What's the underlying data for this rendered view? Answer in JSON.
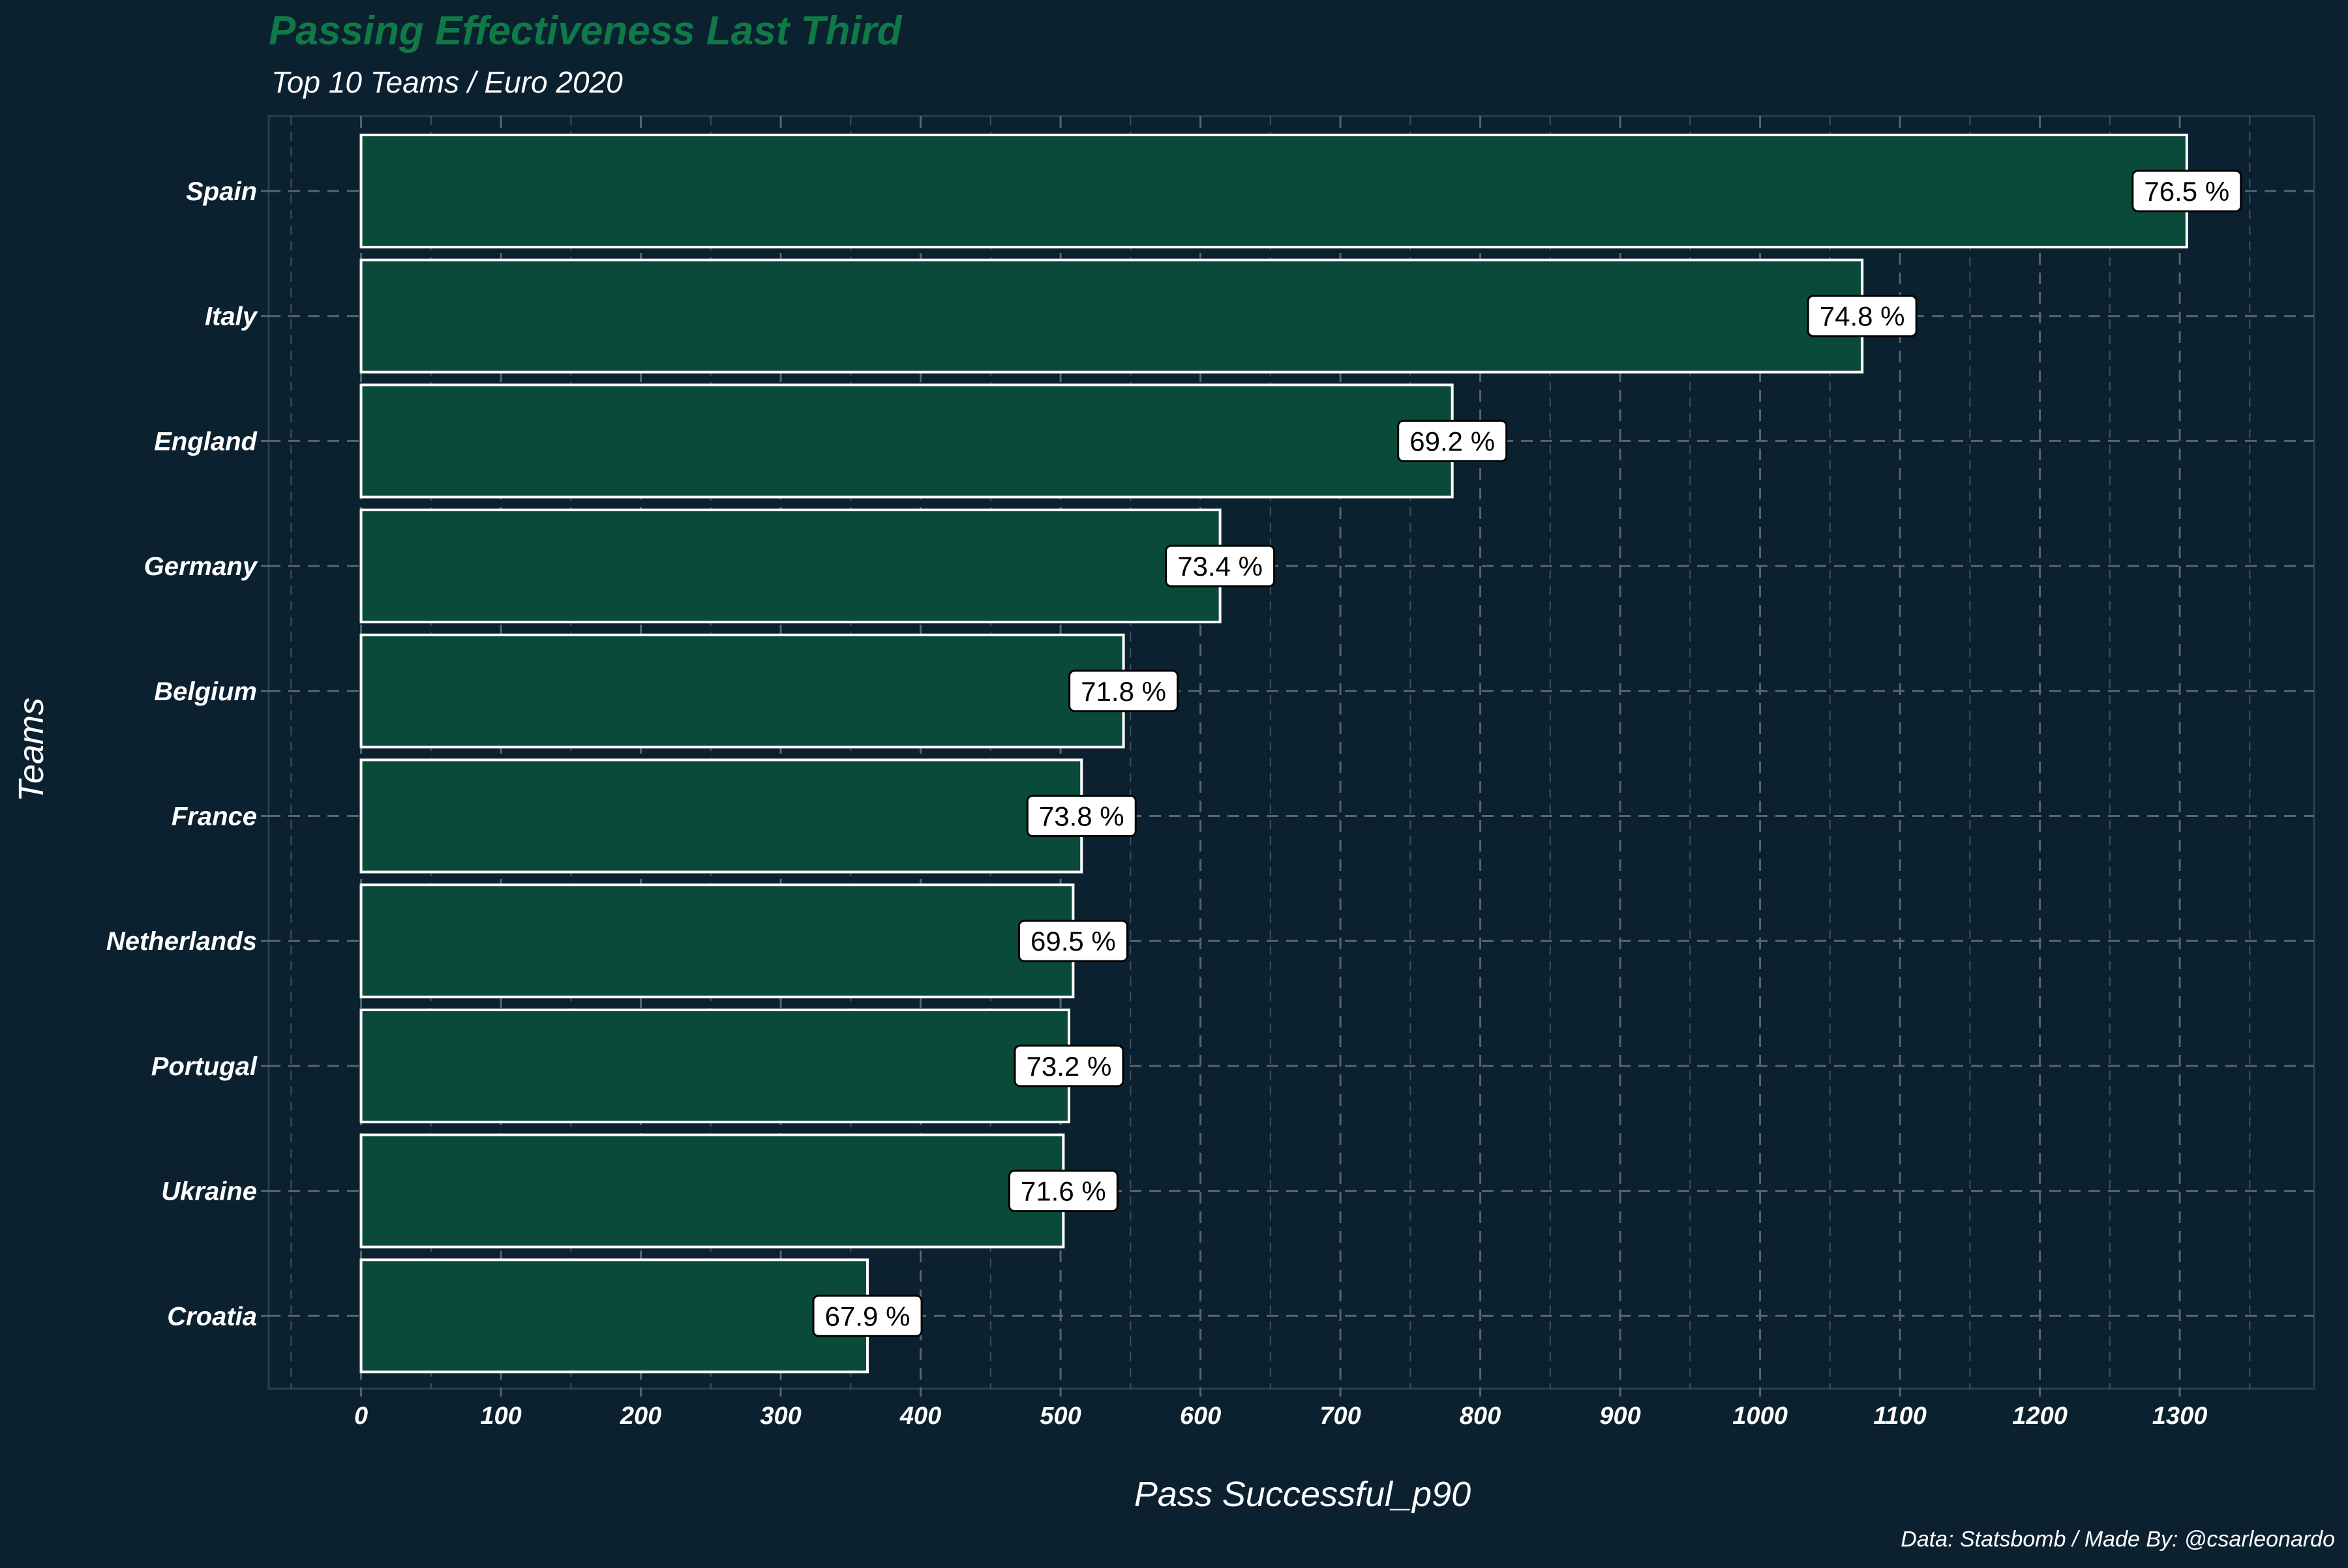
{
  "chart_data": {
    "type": "bar",
    "orientation": "horizontal",
    "title": "Passing Effectiveness Last Third",
    "subtitle": "Top 10 Teams / Euro 2020",
    "xlabel": "Pass Successful_p90",
    "ylabel": "Teams",
    "caption": "Data: Statsbomb / Made By: @csarleonardo",
    "categories": [
      "Spain",
      "Italy",
      "England",
      "Germany",
      "Belgium",
      "France",
      "Netherlands",
      "Portugal",
      "Ukraine",
      "Croatia"
    ],
    "values": [
      1305,
      1073,
      780,
      614,
      545,
      515,
      509,
      506,
      502,
      362
    ],
    "labels": [
      "76.5 %",
      "74.8 %",
      "69.2 %",
      "73.4 %",
      "71.8 %",
      "73.8 %",
      "69.5 %",
      "73.2 %",
      "71.6 %",
      "67.9 %"
    ],
    "xlim": [
      -66,
      1396
    ],
    "xticks": [
      0,
      100,
      200,
      300,
      400,
      500,
      600,
      700,
      800,
      900,
      1000,
      1100,
      1200,
      1300
    ],
    "grid": true,
    "colors": {
      "background": "#0b2130",
      "bar_fill": "#0a4a3a",
      "bar_stroke": "#ffffff",
      "title": "#0f7a47",
      "text": "#ffffff",
      "grid": "#556672",
      "label_box": "#ffffff",
      "label_text": "#000000"
    }
  }
}
